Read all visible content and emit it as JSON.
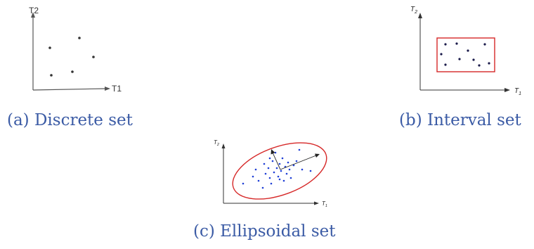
{
  "figure_a": {
    "caption": "(a) Discrete set",
    "y_axis_label": "T2",
    "x_axis_label": "T1"
  },
  "figure_b": {
    "caption": "(b) Interval set",
    "y_axis_label": "T",
    "y_axis_sub": "2",
    "x_axis_label": "T",
    "x_axis_sub": "1"
  },
  "figure_c": {
    "caption": "(c) Ellipsoidal set",
    "y_axis_label": "T",
    "y_axis_sub": "2",
    "x_axis_label": "T",
    "x_axis_sub": "1"
  },
  "colors": {
    "caption": "#3b5ba5",
    "axis": "#555555",
    "box": "#d62828",
    "ellipse": "#d62828",
    "points_b": "#1a1a4a",
    "points_c": "#1f3fd6"
  }
}
